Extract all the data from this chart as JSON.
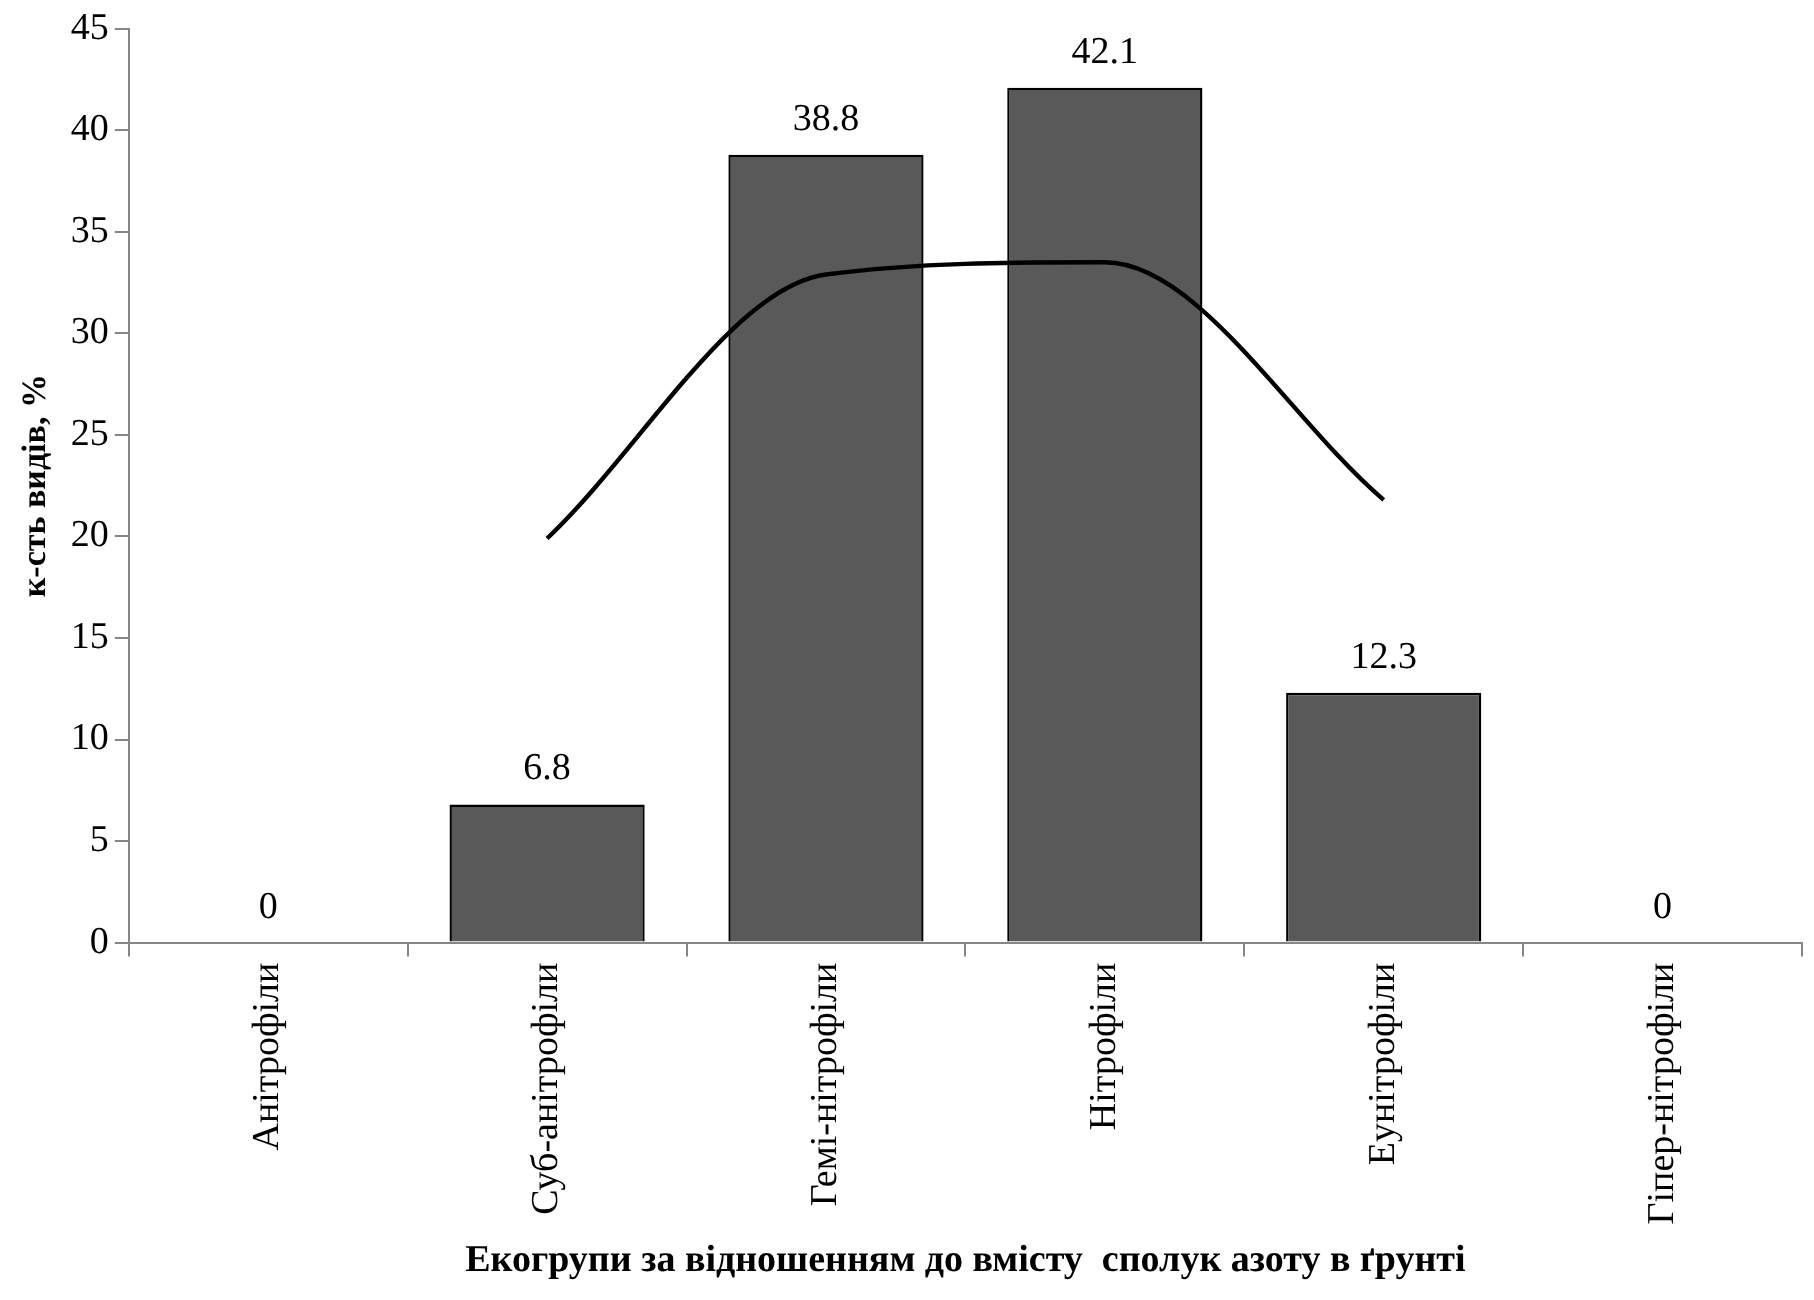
{
  "chart_data": {
    "type": "bar",
    "xlabel": "Екогрупи за відношенням до вмісту  сполук азоту в ґрунті",
    "ylabel": "к-сть видів, %",
    "categories": [
      "Анітрофіли",
      "Суб-анітрофіли",
      "Гемі-нітрофіли",
      "Нітрофіли",
      "Еунітрофіли",
      "Гіпер-нітрофіли"
    ],
    "series": [
      {
        "color": "#595959",
        "values": [
          0,
          6.8,
          38.8,
          42.1,
          12.3,
          0
        ],
        "value_labels": [
          "0",
          "6.8",
          "38.8",
          "42.1",
          "12.3",
          "0"
        ]
      },
      {
        "type": "line",
        "color": "#000000",
        "values": [
          null,
          19.9,
          32.9,
          33.5,
          21.8,
          null
        ]
      }
    ],
    "ylim": [
      0,
      45
    ],
    "yticks": [
      0,
      5,
      10,
      15,
      20,
      25,
      30,
      35,
      40,
      45
    ],
    "grid": false,
    "legend": false,
    "marker": "none",
    "line_style": "solid"
  }
}
